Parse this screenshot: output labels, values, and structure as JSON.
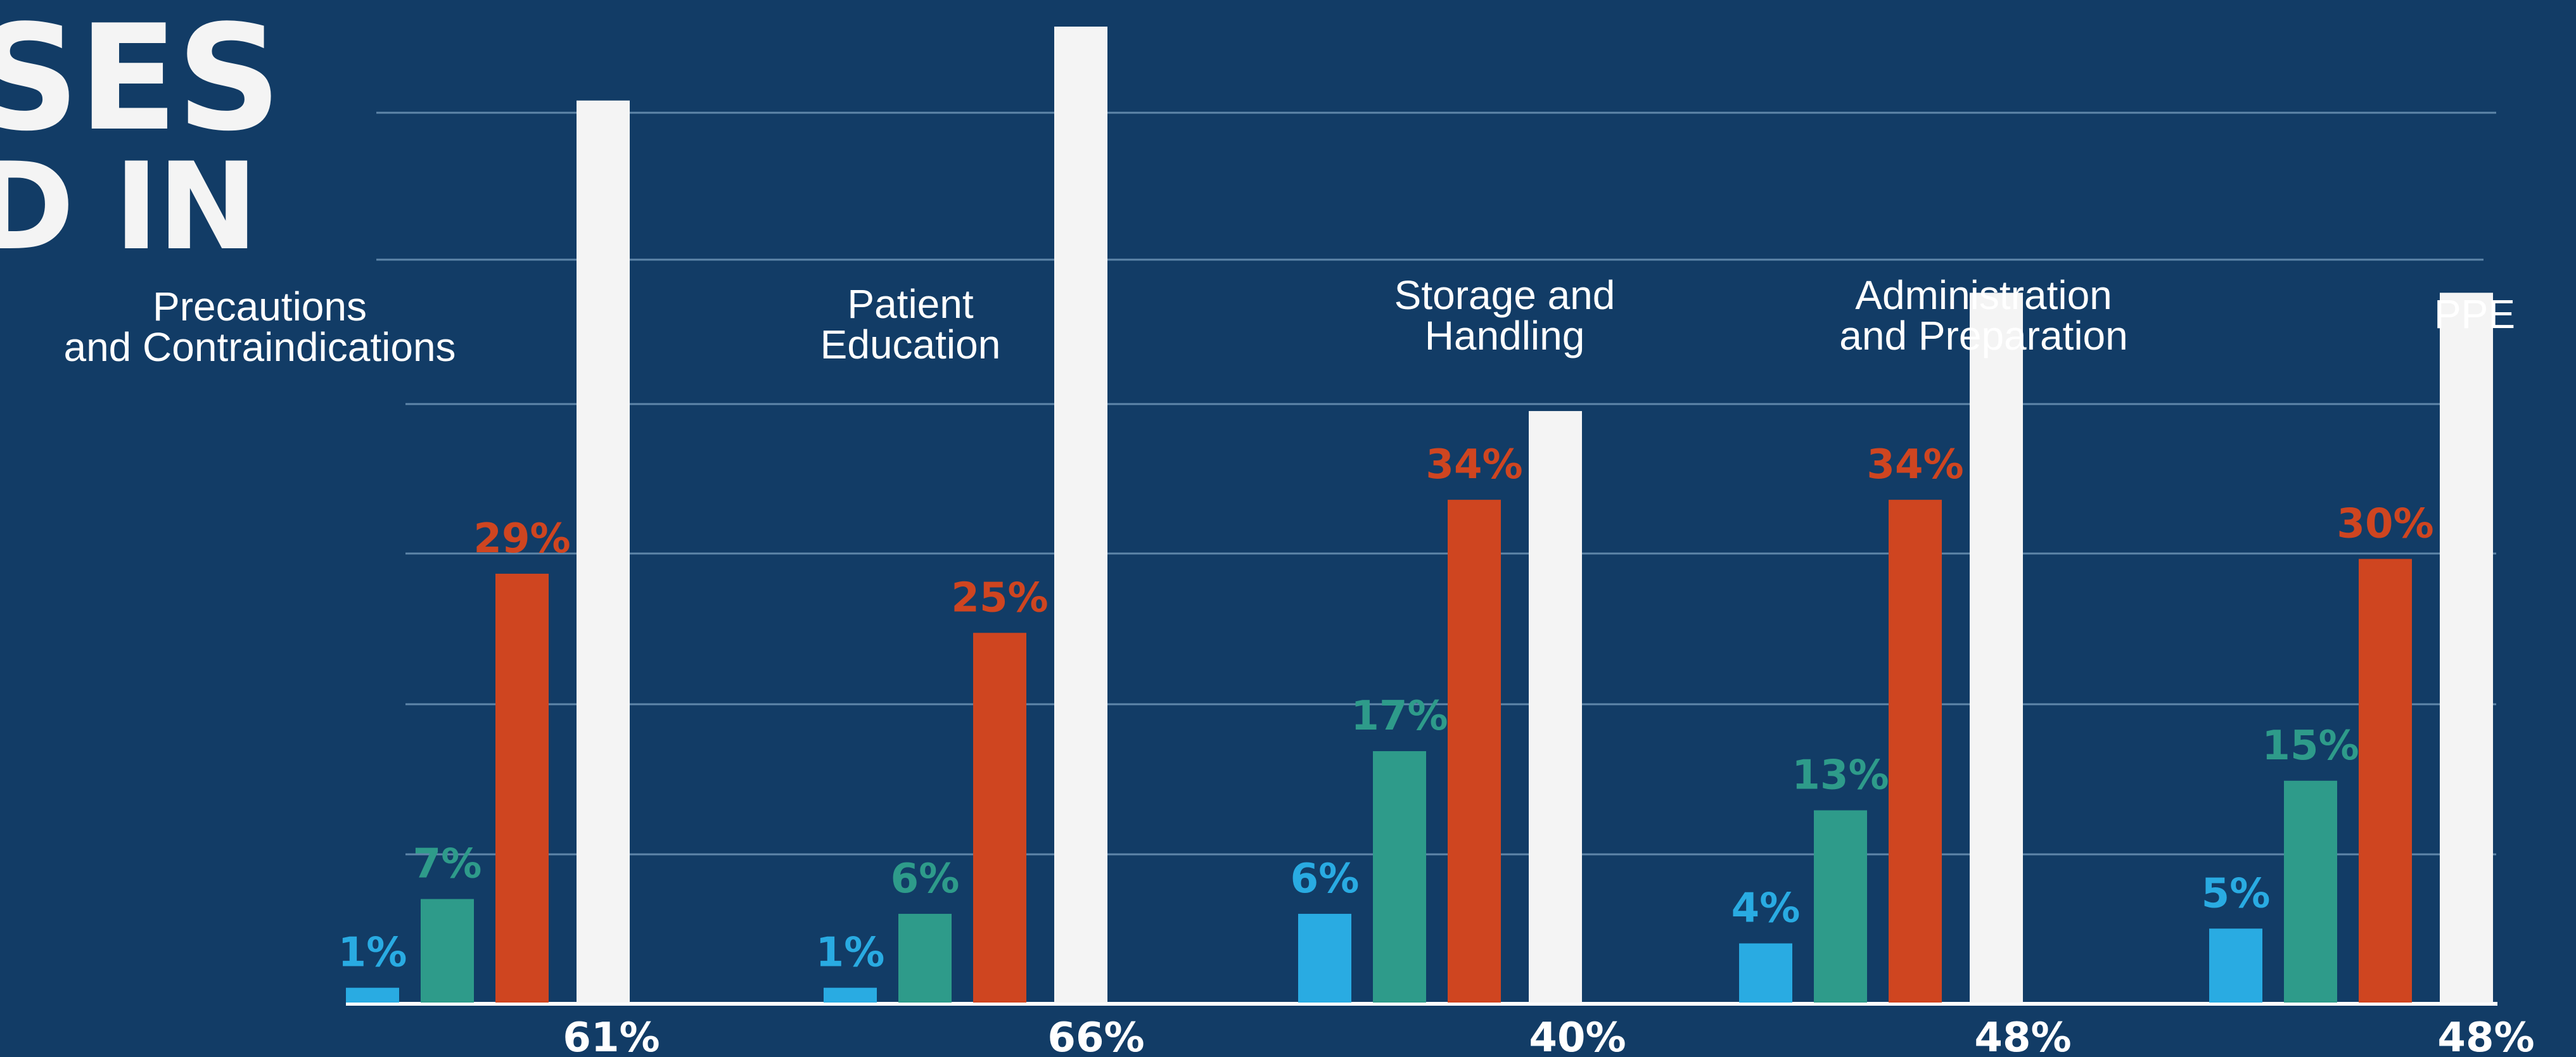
{
  "heading": {
    "line1": "SES",
    "line2": "D IN"
  },
  "colors": {
    "background": "#123c66",
    "gridline": "#5f86a9",
    "baseline": "#ffffff",
    "blue": "#29abe2",
    "green": "#2e9b8a",
    "orange": "#cf4520",
    "white": "#f4f4f4",
    "text": "#ffffff"
  },
  "chart_data": {
    "type": "bar",
    "categories": [
      "Precautions\nand Contraindications",
      "Patient\nEducation",
      "Storage and\nHandling",
      "Administration\nand Preparation",
      "PPE"
    ],
    "series": [
      {
        "color": "blue",
        "values": [
          1,
          1,
          6,
          4,
          5
        ],
        "labels": [
          "1%",
          "1%",
          "6%",
          "4%",
          "5%"
        ]
      },
      {
        "color": "green",
        "values": [
          7,
          6,
          17,
          13,
          15
        ],
        "labels": [
          "7%",
          "6%",
          "17%",
          "13%",
          "15%"
        ]
      },
      {
        "color": "orange",
        "values": [
          29,
          25,
          34,
          34,
          30
        ],
        "labels": [
          "29%",
          "25%",
          "34%",
          "34%",
          "30%"
        ]
      },
      {
        "color": "white",
        "values": [
          61,
          66,
          40,
          48,
          48
        ],
        "labels": [
          "61%",
          "66%",
          "40%",
          "48%",
          "48%"
        ]
      }
    ],
    "ylim": [
      0,
      66
    ],
    "grid": true,
    "legend": "none"
  }
}
